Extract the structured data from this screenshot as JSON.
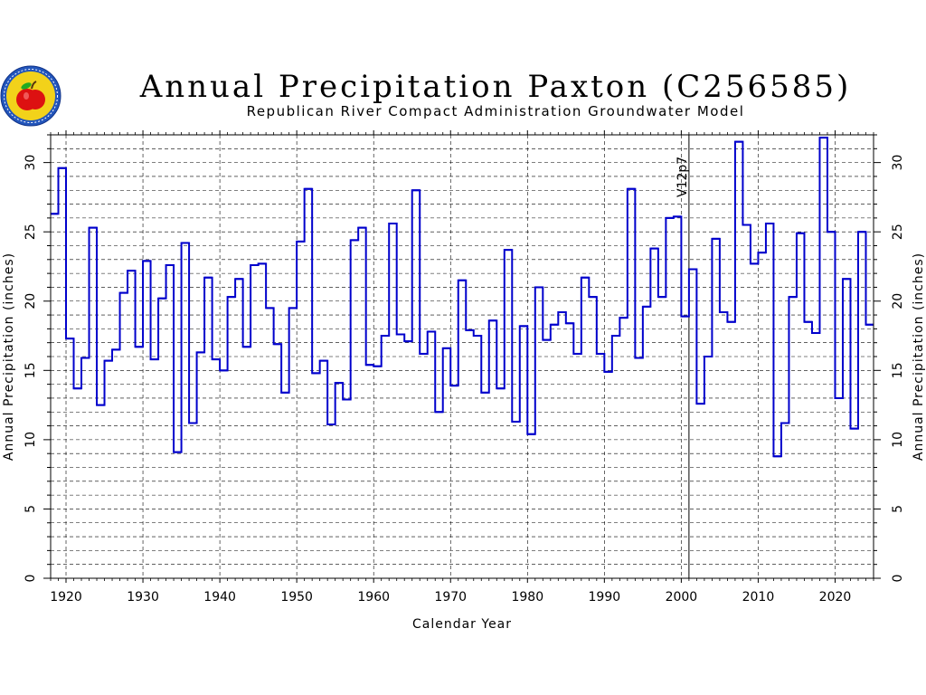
{
  "chart_data": {
    "type": "line",
    "style": "step",
    "title": "Annual Precipitation Paxton (C256585)",
    "subtitle": "Republican River Compact Administration Groundwater Model",
    "xlabel": "Calendar Year",
    "ylabel": "Annual Precipitation (inches)",
    "ylabel_right": "Annual Precipitation (inches)",
    "xlim": [
      1918,
      2025
    ],
    "ylim": [
      0,
      32
    ],
    "x_ticks": [
      "1920",
      "1930",
      "1940",
      "1950",
      "1960",
      "1970",
      "1980",
      "1990",
      "2000",
      "2010",
      "2020"
    ],
    "y_ticks": [
      "0",
      "5",
      "10",
      "15",
      "20",
      "25",
      "30"
    ],
    "grid": "dashed horizontal every 1 inch, dashed vertical every 10 years",
    "annotation": {
      "x": 2001,
      "label": "V12p7"
    },
    "line_color": "#0000cc",
    "x": [
      1918,
      1919,
      1920,
      1921,
      1922,
      1923,
      1924,
      1925,
      1926,
      1927,
      1928,
      1929,
      1930,
      1931,
      1932,
      1933,
      1934,
      1935,
      1936,
      1937,
      1938,
      1939,
      1940,
      1941,
      1942,
      1943,
      1944,
      1945,
      1946,
      1947,
      1948,
      1949,
      1950,
      1951,
      1952,
      1953,
      1954,
      1955,
      1956,
      1957,
      1958,
      1959,
      1960,
      1961,
      1962,
      1963,
      1964,
      1965,
      1966,
      1967,
      1968,
      1969,
      1970,
      1971,
      1972,
      1973,
      1974,
      1975,
      1976,
      1977,
      1978,
      1979,
      1980,
      1981,
      1982,
      1983,
      1984,
      1985,
      1986,
      1987,
      1988,
      1989,
      1990,
      1991,
      1992,
      1993,
      1994,
      1995,
      1996,
      1997,
      1998,
      1999,
      2000,
      2001,
      2002,
      2003,
      2004,
      2005,
      2006,
      2007,
      2008,
      2009,
      2010,
      2011,
      2012,
      2013,
      2014,
      2015,
      2016,
      2017,
      2018,
      2019,
      2020,
      2021,
      2022,
      2023,
      2024
    ],
    "values": [
      26.3,
      29.6,
      17.3,
      13.7,
      15.9,
      25.3,
      12.5,
      15.7,
      16.5,
      20.6,
      22.2,
      16.7,
      22.9,
      15.8,
      20.2,
      22.6,
      9.1,
      24.2,
      11.2,
      16.3,
      21.7,
      15.8,
      15.0,
      20.3,
      21.6,
      16.7,
      22.6,
      22.7,
      19.5,
      16.9,
      13.4,
      19.5,
      24.3,
      28.1,
      14.8,
      15.7,
      11.1,
      14.1,
      12.9,
      24.4,
      25.3,
      15.4,
      15.3,
      17.5,
      25.6,
      17.6,
      17.1,
      28.0,
      16.2,
      17.8,
      12.0,
      16.6,
      13.9,
      21.5,
      17.9,
      17.5,
      13.4,
      18.6,
      13.7,
      23.7,
      11.3,
      18.2,
      10.4,
      21.0,
      17.2,
      18.3,
      19.2,
      18.4,
      16.2,
      21.7,
      20.3,
      16.2,
      14.9,
      17.5,
      18.8,
      28.1,
      15.9,
      19.6,
      23.8,
      20.3,
      26.0,
      26.1,
      18.9,
      22.3,
      12.6,
      16.0,
      24.5,
      19.2,
      18.5,
      31.5,
      25.5,
      22.7,
      23.5,
      25.6,
      8.8,
      11.2,
      20.3,
      24.9,
      18.5,
      17.7,
      31.8,
      25.0,
      13.0,
      21.6,
      10.8,
      25.0,
      18.3
    ]
  }
}
